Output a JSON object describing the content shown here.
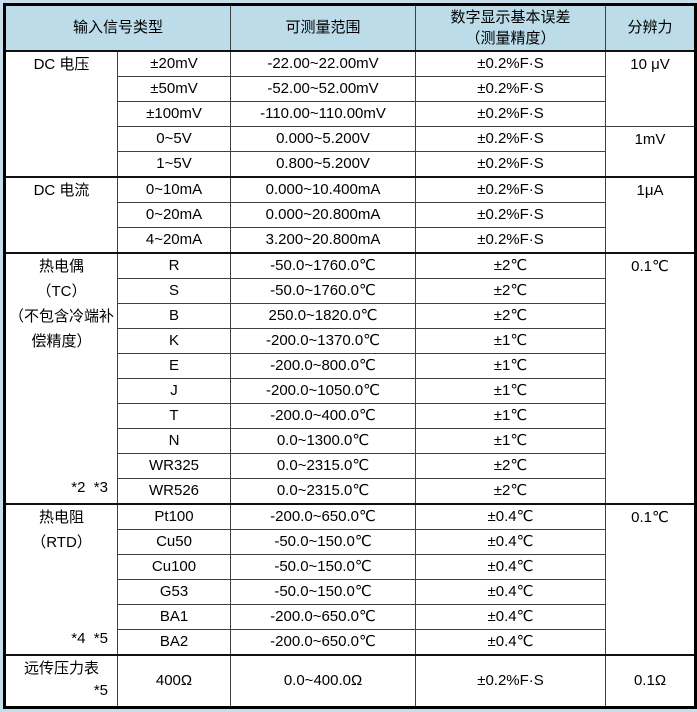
{
  "colors": {
    "page_bg": "#c6dfeb",
    "header_bg": "#bcdcea",
    "grid_line": "#404040",
    "outer_border": "#000000",
    "text": "#000000"
  },
  "header": {
    "signal_type": "输入信号类型",
    "range": "可测量范围",
    "error_line1": "数字显示基本误差",
    "error_line2": "（测量精度）",
    "resolution": "分辨力"
  },
  "categories": {
    "dc_voltage": "DC 电压",
    "dc_current": "DC 电流",
    "tc_lines": [
      "热电偶",
      "（TC）",
      "（不包含冷端补",
      "偿精度）"
    ],
    "tc_footnote": "*2  *3",
    "rtd_lines": [
      "热电阻",
      "（RTD）"
    ],
    "rtd_footnote": "*4  *5",
    "pressure_label": "远传压力表",
    "pressure_footnote": "*5"
  },
  "resolutions": {
    "uv10": "10 μV",
    "mv1": "1mV",
    "ua1": "1μA",
    "c01_tc": "0.1℃",
    "c01_rtd": "0.1℃",
    "ohm01": "0.1Ω"
  },
  "rows": [
    {
      "type": "±20mV",
      "range": "-22.00~22.00mV",
      "error": "±0.2%F·S"
    },
    {
      "type": "±50mV",
      "range": "-52.00~52.00mV",
      "error": "±0.2%F·S"
    },
    {
      "type": "±100mV",
      "range": "-110.00~110.00mV",
      "error": "±0.2%F·S"
    },
    {
      "type": "0~5V",
      "range": "0.000~5.200V",
      "error": "±0.2%F·S"
    },
    {
      "type": "1~5V",
      "range": "0.800~5.200V",
      "error": "±0.2%F·S"
    },
    {
      "type": "0~10mA",
      "range": "0.000~10.400mA",
      "error": "±0.2%F·S"
    },
    {
      "type": "0~20mA",
      "range": "0.000~20.800mA",
      "error": "±0.2%F·S"
    },
    {
      "type": "4~20mA",
      "range": "3.200~20.800mA",
      "error": "±0.2%F·S"
    },
    {
      "type": "R",
      "range": "-50.0~1760.0℃",
      "error": "±2℃"
    },
    {
      "type": "S",
      "range": "-50.0~1760.0℃",
      "error": "±2℃"
    },
    {
      "type": "B",
      "range": "250.0~1820.0℃",
      "error": "±2℃"
    },
    {
      "type": "K",
      "range": "-200.0~1370.0℃",
      "error": "±1℃"
    },
    {
      "type": "E",
      "range": "-200.0~800.0℃",
      "error": "±1℃"
    },
    {
      "type": "J",
      "range": "-200.0~1050.0℃",
      "error": "±1℃"
    },
    {
      "type": "T",
      "range": "-200.0~400.0℃",
      "error": "±1℃"
    },
    {
      "type": "N",
      "range": "0.0~1300.0℃",
      "error": "±1℃"
    },
    {
      "type": "WR325",
      "range": "0.0~2315.0℃",
      "error": "±2℃"
    },
    {
      "type": "WR526",
      "range": "0.0~2315.0℃",
      "error": "±2℃"
    },
    {
      "type": "Pt100",
      "range": "-200.0~650.0℃",
      "error": "±0.4℃"
    },
    {
      "type": "Cu50",
      "range": "-50.0~150.0℃",
      "error": "±0.4℃"
    },
    {
      "type": "Cu100",
      "range": "-50.0~150.0℃",
      "error": "±0.4℃"
    },
    {
      "type": "G53",
      "range": "-50.0~150.0℃",
      "error": "±0.4℃"
    },
    {
      "type": "BA1",
      "range": "-200.0~650.0℃",
      "error": "±0.4℃"
    },
    {
      "type": "BA2",
      "range": "-200.0~650.0℃",
      "error": "±0.4℃"
    },
    {
      "type": "400Ω",
      "range": "0.0~400.0Ω",
      "error": "±0.2%F·S"
    }
  ]
}
